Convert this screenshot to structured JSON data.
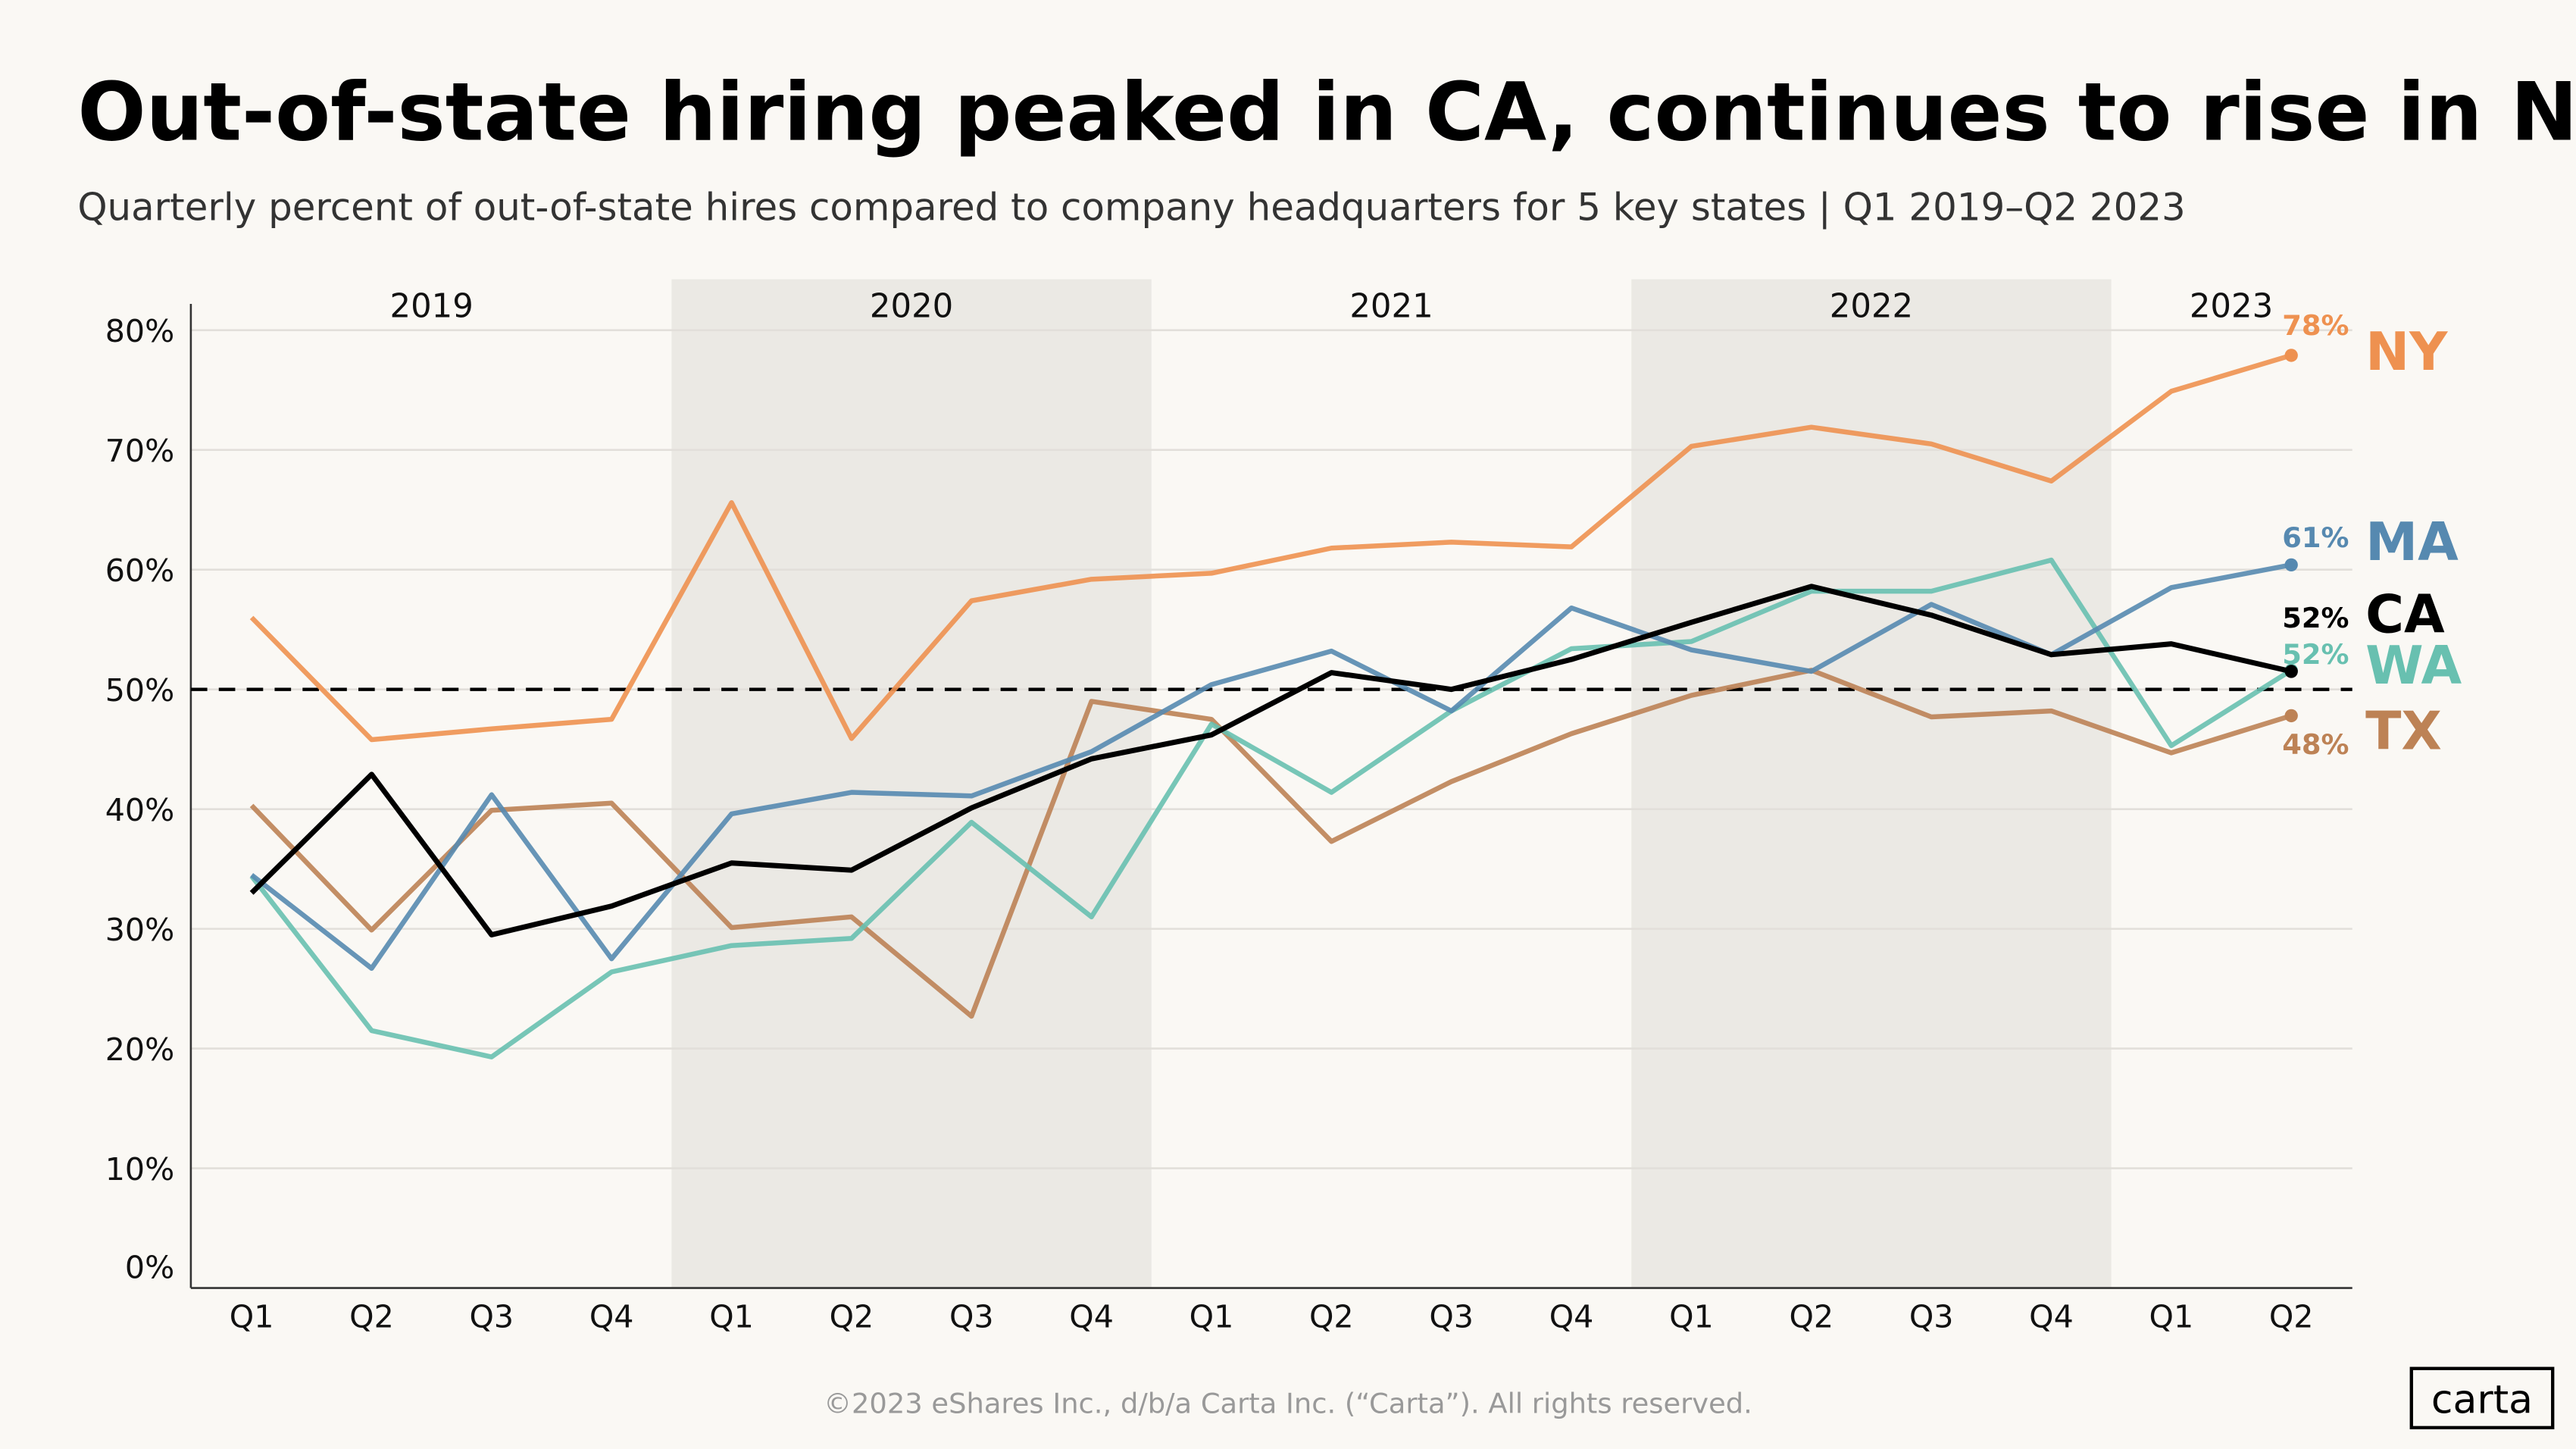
{
  "title": "Out-of-state hiring peaked in CA, continues to rise in NY",
  "subtitle": "Quarterly percent of out-of-state hires compared to company headquarters for 5 key states  |  Q1 2019–Q2 2023",
  "footer": "©2023 eShares Inc., d/b/a Carta Inc. (“Carta”). All rights reserved.",
  "logo": "carta",
  "chart_data": {
    "type": "line",
    "title": "Out-of-state hiring peaked in CA, continues to rise in NY",
    "xlabel": "",
    "ylabel": "",
    "ylim": [
      0,
      80
    ],
    "yticks": [
      "0%",
      "10%",
      "20%",
      "30%",
      "40%",
      "50%",
      "60%",
      "70%",
      "80%"
    ],
    "years": [
      "2019",
      "2020",
      "2021",
      "2022",
      "2023"
    ],
    "shaded_years": [
      "2020",
      "2022"
    ],
    "categories": [
      "Q1",
      "Q2",
      "Q3",
      "Q4",
      "Q1",
      "Q2",
      "Q3",
      "Q4",
      "Q1",
      "Q2",
      "Q3",
      "Q4",
      "Q1",
      "Q2",
      "Q3",
      "Q4",
      "Q1",
      "Q2"
    ],
    "reference_line": 50,
    "grid": true,
    "legend": "right (direct labels)",
    "series": [
      {
        "name": "NY",
        "color": "#ee9150",
        "end_label": "78%",
        "values": [
          56.0,
          45.8,
          46.7,
          47.5,
          65.6,
          45.9,
          57.4,
          59.2,
          59.7,
          61.8,
          62.3,
          61.9,
          70.3,
          71.9,
          70.5,
          67.4,
          74.9,
          77.9
        ]
      },
      {
        "name": "MA",
        "color": "#5689b0",
        "end_label": "61%",
        "values": [
          34.5,
          26.7,
          41.2,
          27.5,
          39.6,
          41.4,
          41.1,
          44.8,
          50.4,
          53.2,
          48.2,
          56.8,
          53.3,
          51.5,
          57.1,
          52.9,
          58.5,
          60.4
        ]
      },
      {
        "name": "CA",
        "color": "#000000",
        "end_label": "52%",
        "values": [
          33.0,
          42.9,
          29.5,
          31.9,
          35.5,
          34.9,
          40.1,
          44.2,
          46.2,
          51.4,
          50.0,
          52.5,
          55.6,
          58.6,
          56.2,
          52.9,
          53.8,
          51.5
        ]
      },
      {
        "name": "WA",
        "color": "#68c0b0",
        "end_label": "52%",
        "values": [
          34.4,
          21.5,
          19.3,
          26.4,
          28.6,
          29.2,
          38.9,
          31.0,
          47.1,
          41.4,
          48.2,
          53.4,
          54.0,
          58.2,
          58.2,
          60.8,
          45.3,
          51.6
        ]
      },
      {
        "name": "TX",
        "color": "#bd8255",
        "end_label": "48%",
        "values": [
          40.3,
          29.9,
          39.9,
          40.5,
          30.1,
          31.0,
          22.7,
          49.0,
          47.5,
          37.3,
          42.3,
          46.3,
          49.5,
          51.6,
          47.7,
          48.2,
          44.7,
          47.8
        ]
      }
    ]
  }
}
